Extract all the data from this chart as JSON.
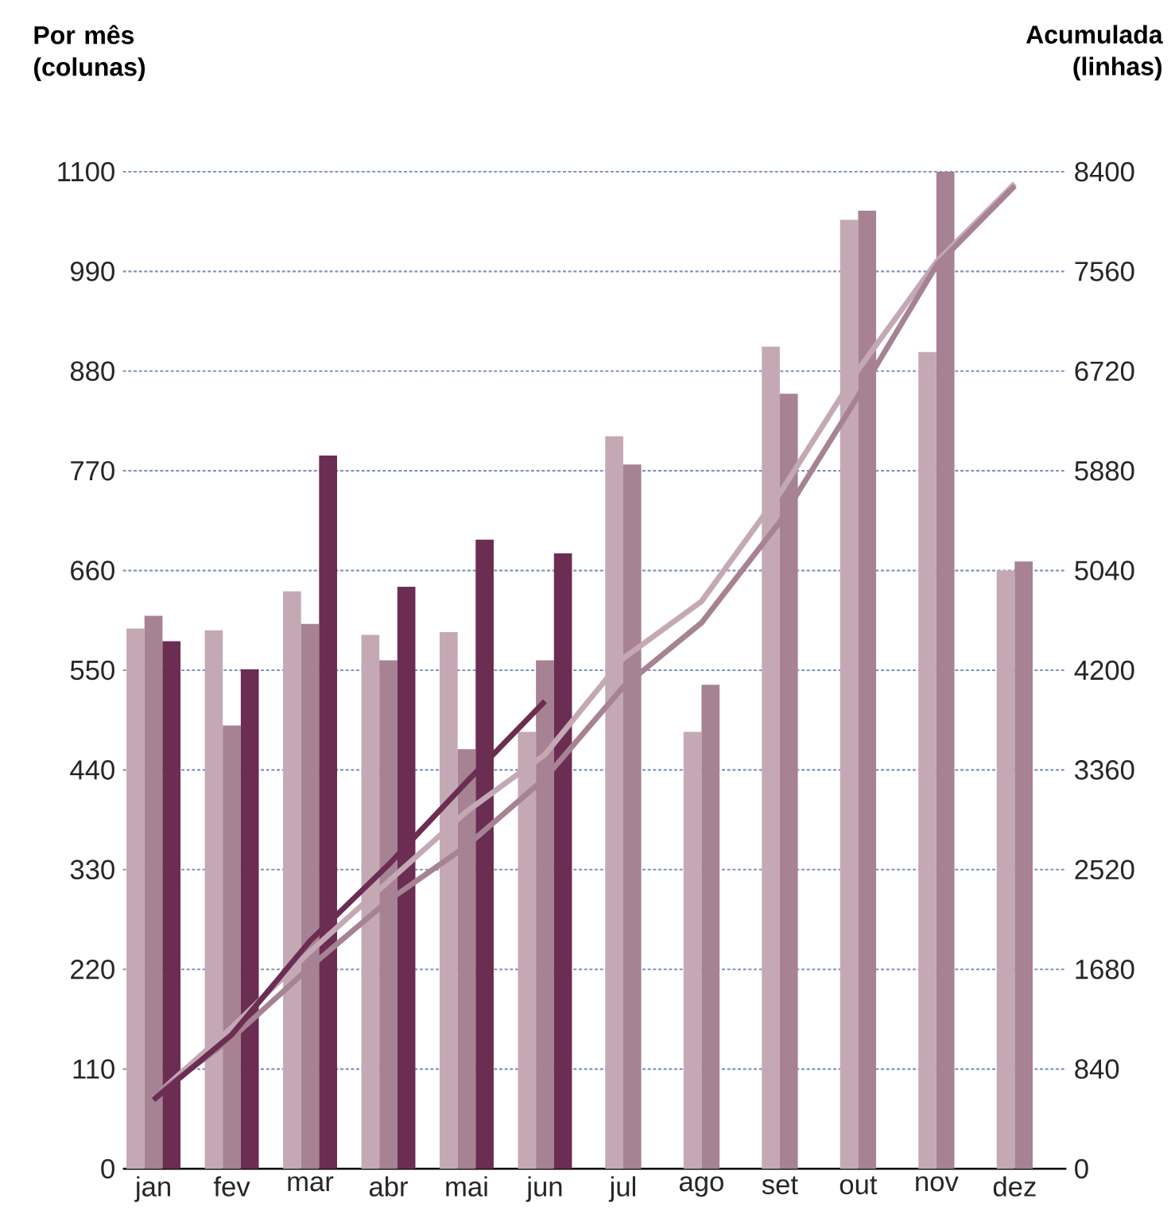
{
  "chart_data": {
    "type": "bar",
    "ylabel": "Por mês (colunas)",
    "y2label": "Acumulada (linhas)",
    "categories": [
      "jan",
      "fev",
      "mar",
      "abr",
      "mai",
      "jun",
      "jul",
      "ago",
      "set",
      "out",
      "nov",
      "dez"
    ],
    "series": [
      {
        "color": "#c4a9b5",
        "values": [
          596,
          594,
          637,
          589,
          592,
          482,
          808,
          482,
          907,
          1047,
          901,
          660
        ]
      },
      {
        "color": "#a68292",
        "values": [
          610,
          489,
          601,
          561,
          463,
          561,
          777,
          534,
          855,
          1057,
          1100,
          670
        ]
      },
      {
        "color": "#6b2d52",
        "values": [
          582,
          551,
          787,
          642,
          694,
          679,
          null,
          null,
          null,
          null,
          null,
          null
        ]
      },
      {
        "type": "line",
        "axis": "y2",
        "color": "#c4a9b5",
        "values": [
          600,
          1190,
          1830,
          2420,
          3010,
          3490,
          4300,
          4780,
          5690,
          6730,
          7640,
          8300
        ]
      },
      {
        "type": "line",
        "axis": "y2",
        "color": "#a68292",
        "values": [
          610,
          1100,
          1700,
          2260,
          2720,
          3290,
          4060,
          4600,
          5450,
          6510,
          7610,
          8280
        ]
      },
      {
        "type": "line",
        "axis": "y2",
        "color": "#6b2d52",
        "values": [
          580,
          1130,
          1920,
          2560,
          3260,
          3940,
          null,
          null,
          null,
          null,
          null,
          null
        ]
      }
    ],
    "ylim": [
      0,
      1100
    ],
    "yticks": [
      0,
      110,
      220,
      330,
      440,
      550,
      660,
      770,
      880,
      990,
      1100
    ],
    "y2lim": [
      0,
      8400
    ],
    "y2ticks": [
      0,
      840,
      1680,
      2520,
      3360,
      4200,
      5040,
      5880,
      6720,
      7560,
      8400
    ],
    "grid": "y"
  }
}
